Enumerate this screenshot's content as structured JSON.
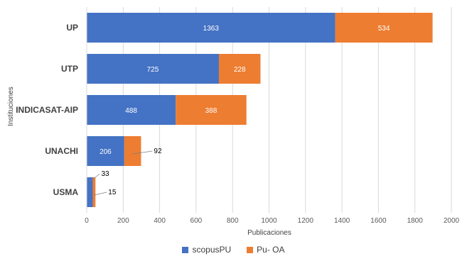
{
  "chart_data": {
    "type": "bar",
    "orientation": "horizontal",
    "stacked": true,
    "categories": [
      "UP",
      "UTP",
      "INDICASAT-AIP",
      "UNACHI",
      "USMA"
    ],
    "series": [
      {
        "name": "scopusPU",
        "values": [
          1363,
          725,
          488,
          206,
          33
        ],
        "color": "#4472C4"
      },
      {
        "name": "Pu- OA",
        "values": [
          534,
          228,
          388,
          92,
          15
        ],
        "color": "#ED7D31"
      }
    ],
    "xlabel": "Publicaciones",
    "ylabel": "Instituciones",
    "xlim": [
      0,
      2000
    ],
    "xticks": [
      0,
      200,
      400,
      600,
      800,
      1000,
      1200,
      1400,
      1600,
      1800,
      2000
    ],
    "grid": "vertical",
    "legend_position": "bottom",
    "data_labels": true
  }
}
